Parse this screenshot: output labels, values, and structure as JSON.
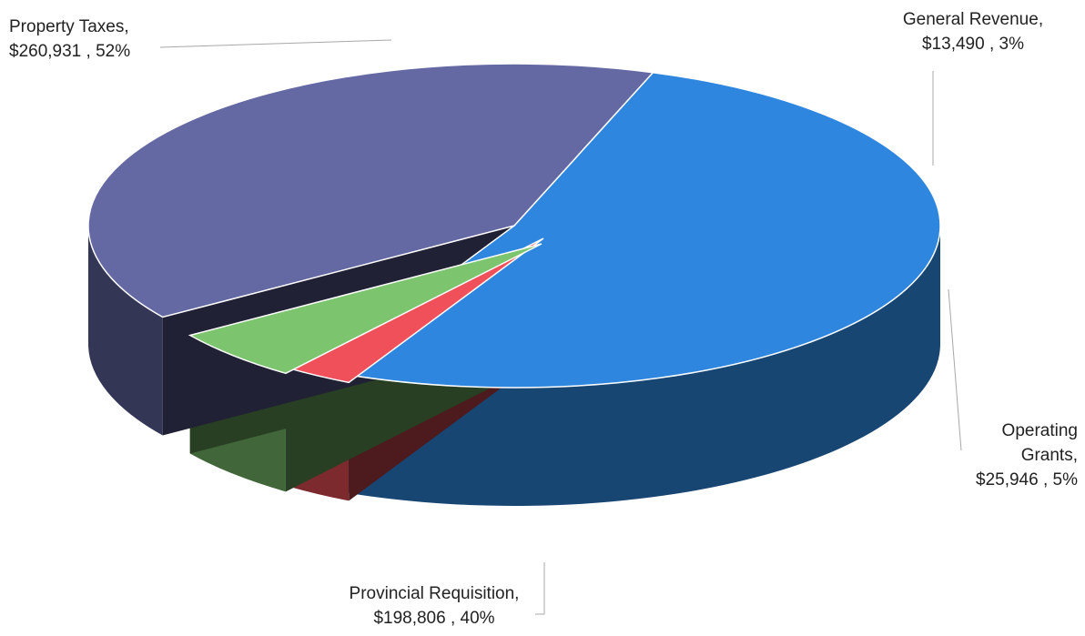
{
  "chart_data": {
    "type": "pie",
    "title": "",
    "categories": [
      "Property Taxes",
      "General Revenue",
      "Operating Grants",
      "Provincial Requisition"
    ],
    "values": [
      260931,
      13490,
      25946,
      198806
    ],
    "percents": [
      52,
      3,
      5,
      40
    ],
    "value_labels": [
      "$260,931",
      "$13,490",
      "$25,946",
      "$198,806"
    ],
    "percent_labels": [
      "52%",
      "3%",
      "5%",
      "40%"
    ],
    "colors": [
      "#2E86DE",
      "#F0505A",
      "#7CC46E",
      "#6468A3"
    ],
    "exploded": [
      "General Revenue",
      "Operating Grants"
    ],
    "style": "3d"
  },
  "labels": {
    "property_taxes": {
      "name": "Property Taxes,",
      "value": "$260,931 , 52%"
    },
    "general_revenue": {
      "name": "General Revenue,",
      "value": "$13,490 , 3%"
    },
    "operating_grants": {
      "name1": "Operating",
      "name2": "Grants,",
      "value": "$25,946 , 5%"
    },
    "provincial_requisition": {
      "name": "Provincial Requisition,",
      "value": "$198,806 , 40%"
    }
  }
}
